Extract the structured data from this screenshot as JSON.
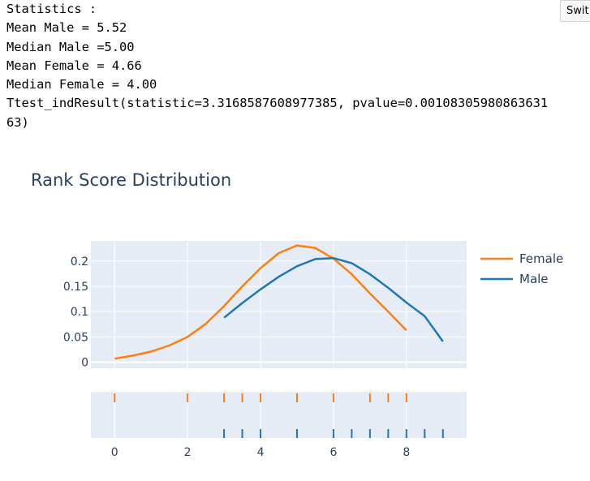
{
  "output": {
    "lines": [
      "Statistics :",
      "Mean Male = 5.52",
      "Median Male =5.00",
      "Mean Female = 4.66",
      "Median Female = 4.00",
      "Ttest_indResult(statistic=3.3168587608977385, pvalue=0.00108305980863631",
      "63)"
    ]
  },
  "toolbar": {
    "switch_label": "Swit"
  },
  "chart_data": {
    "type": "line",
    "title": "Rank Score Distribution",
    "xlabel": "",
    "ylabel": "",
    "xlim": [
      -0.65,
      9.65
    ],
    "ylim": [
      -0.012,
      0.24
    ],
    "x_ticks": [
      0,
      2,
      4,
      6,
      8
    ],
    "x_tick_labels": [
      "0",
      "2",
      "4",
      "6",
      "8"
    ],
    "y_ticks": [
      0,
      0.05,
      0.1,
      0.15,
      0.2
    ],
    "y_tick_labels": [
      "0",
      "0.05",
      "0.1",
      "0.15",
      "0.2"
    ],
    "grid": true,
    "legend_position": "right",
    "series": [
      {
        "name": "Female",
        "color": "#ff7f0e",
        "x": [
          0,
          0.5,
          1,
          1.5,
          2,
          2.5,
          3,
          3.5,
          4,
          4.5,
          5,
          5.5,
          6,
          6.5,
          7,
          7.5,
          8
        ],
        "values": [
          0.007,
          0.013,
          0.021,
          0.033,
          0.05,
          0.076,
          0.111,
          0.15,
          0.186,
          0.216,
          0.231,
          0.226,
          0.205,
          0.174,
          0.136,
          0.1,
          0.063
        ],
        "rug": [
          0,
          2,
          3,
          3.5,
          4,
          5,
          6,
          7,
          7.5,
          8
        ]
      },
      {
        "name": "Male",
        "color": "#1f77b4",
        "x": [
          3,
          3.5,
          4,
          4.5,
          5,
          5.5,
          6,
          6.5,
          7,
          7.5,
          8,
          8.5,
          9
        ],
        "values": [
          0.088,
          0.117,
          0.144,
          0.169,
          0.19,
          0.204,
          0.206,
          0.196,
          0.174,
          0.147,
          0.118,
          0.091,
          0.041
        ],
        "rug": [
          3,
          3.5,
          4,
          5,
          6,
          6.5,
          7,
          7.5,
          8,
          8.5,
          9
        ]
      }
    ]
  }
}
